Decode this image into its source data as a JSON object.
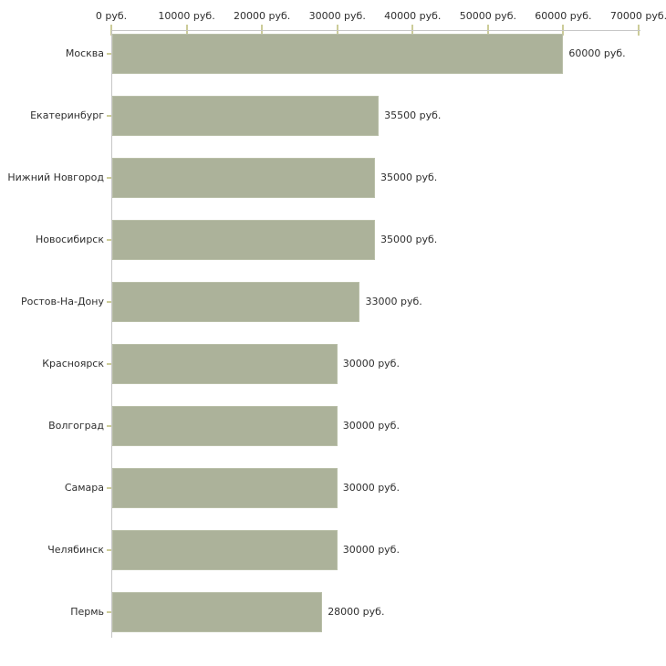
{
  "chart_data": {
    "type": "bar",
    "orientation": "horizontal",
    "title": "",
    "categories": [
      "Москва",
      "Екатеринбург",
      "Нижний Новгород",
      "Новосибирск",
      "Ростов-На-Дону",
      "Красноярск",
      "Волгоград",
      "Самара",
      "Челябинск",
      "Пермь"
    ],
    "values": [
      60000,
      35500,
      35000,
      35000,
      33000,
      30000,
      30000,
      30000,
      30000,
      28000
    ],
    "value_labels": [
      "60000 руб.",
      "35500 руб.",
      "35000 руб.",
      "35000 руб.",
      "33000 руб.",
      "30000 руб.",
      "30000 руб.",
      "30000 руб.",
      "30000 руб.",
      "28000 руб."
    ],
    "x_ticks": [
      0,
      10000,
      20000,
      30000,
      40000,
      50000,
      60000,
      70000
    ],
    "x_tick_labels": [
      "0 руб.",
      "10000 руб.",
      "20000 руб.",
      "30000 руб.",
      "40000 руб.",
      "50000 руб.",
      "60000 руб.",
      "70000 руб."
    ],
    "xlim": [
      0,
      70000
    ],
    "unit": "руб.",
    "grid": false,
    "legend_position": "none",
    "colors": {
      "bar_fill": "#acb29a",
      "bar_border": "#b9bfa8",
      "axis_line": "#c6c6c6",
      "tick_mark": "#cccc99",
      "text": "#2e2e2e",
      "background": "#ffffff"
    }
  }
}
